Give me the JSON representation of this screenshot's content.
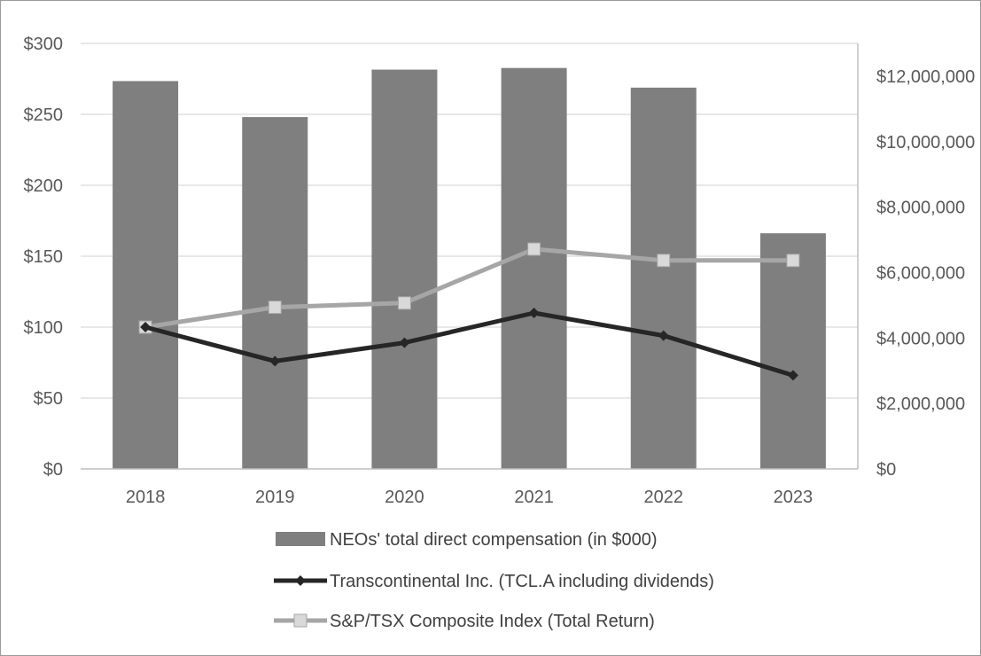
{
  "chart_data": {
    "type": "bar",
    "categories": [
      "2018",
      "2019",
      "2020",
      "2021",
      "2022",
      "2023"
    ],
    "left_axis": {
      "ticks": [
        "$0",
        "$50",
        "$100",
        "$150",
        "$200",
        "$250",
        "$300"
      ],
      "ylim": [
        0,
        300
      ]
    },
    "right_axis": {
      "ticks": [
        "$0",
        "$2,000,000",
        "$4,000,000",
        "$6,000,000",
        "$8,000,000",
        "$10,000,000",
        "$12,000,000"
      ],
      "ylim": [
        0,
        13000000
      ]
    },
    "grid": true,
    "legend_position": "bottom",
    "series": [
      {
        "name": "NEOs' total direct compensation (in $000)",
        "kind": "bar",
        "axis": "right",
        "color": "#7f7f7f",
        "values": [
          11850000,
          10750000,
          12200000,
          12250000,
          11650000,
          7200000
        ]
      },
      {
        "name": "Transcontinental Inc. (TCL.A including dividends)",
        "kind": "line",
        "marker": "diamond",
        "axis": "left",
        "color": "#262626",
        "values": [
          100,
          76,
          89,
          110,
          94,
          66
        ]
      },
      {
        "name": "S&P/TSX Composite Index  (Total Return)",
        "kind": "line",
        "marker": "square",
        "axis": "left",
        "color": "#a6a6a6",
        "marker_color": "#d9d9d9",
        "values": [
          100,
          114,
          117,
          155,
          147,
          147
        ]
      }
    ]
  }
}
